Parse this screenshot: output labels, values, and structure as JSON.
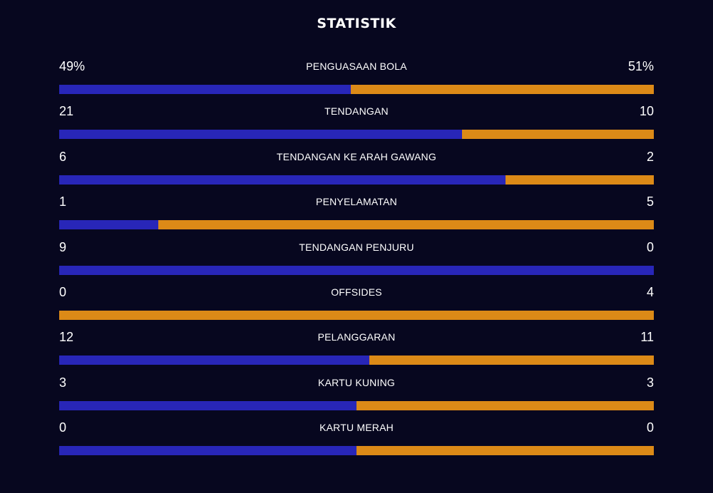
{
  "title": "STATISTIK",
  "colors": {
    "background": "#07071f",
    "home": "#2826b8",
    "away": "#dc8a17"
  },
  "stats": [
    {
      "label": "PENGUASAAN BOLA",
      "home": "49%",
      "away": "51%",
      "home_value": 49,
      "away_value": 51
    },
    {
      "label": "TENDANGAN",
      "home": "21",
      "away": "10",
      "home_value": 21,
      "away_value": 10
    },
    {
      "label": "TENDANGAN KE ARAH GAWANG",
      "home": "6",
      "away": "2",
      "home_value": 6,
      "away_value": 2
    },
    {
      "label": "PENYELAMATAN",
      "home": "1",
      "away": "5",
      "home_value": 1,
      "away_value": 5
    },
    {
      "label": "TENDANGAN PENJURU",
      "home": "9",
      "away": "0",
      "home_value": 9,
      "away_value": 0
    },
    {
      "label": "OFFSIDES",
      "home": "0",
      "away": "4",
      "home_value": 0,
      "away_value": 4
    },
    {
      "label": "PELANGGARAN",
      "home": "12",
      "away": "11",
      "home_value": 12,
      "away_value": 11
    },
    {
      "label": "KARTU KUNING",
      "home": "3",
      "away": "3",
      "home_value": 3,
      "away_value": 3
    },
    {
      "label": "KARTU MERAH",
      "home": "0",
      "away": "0",
      "home_value": 0,
      "away_value": 0
    }
  ]
}
